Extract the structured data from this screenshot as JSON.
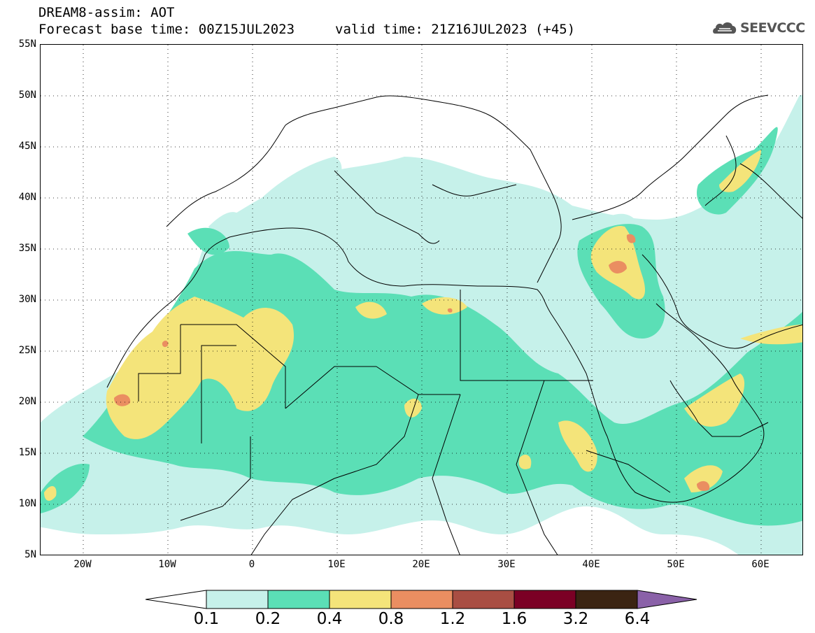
{
  "header": {
    "title": "DREAM8-assim: AOT",
    "base_time": "Forecast base time: 00Z15JUL2023",
    "valid_time": "valid time: 21Z16JUL2023 (+45)"
  },
  "logo": {
    "text": "SEEVCCC",
    "icon": "cloud-icon"
  },
  "map": {
    "lat_labels": [
      "55N",
      "50N",
      "45N",
      "40N",
      "35N",
      "30N",
      "25N",
      "20N",
      "15N",
      "10N",
      "5N"
    ],
    "lon_labels": [
      "20W",
      "10W",
      "0",
      "10E",
      "20E",
      "30E",
      "40E",
      "50E",
      "60E"
    ],
    "lat_range": [
      5,
      55
    ],
    "lon_range": [
      -25,
      65
    ],
    "grid": "dotted"
  },
  "legend": {
    "labels": [
      "0.1",
      "0.2",
      "0.4",
      "0.8",
      "1.2",
      "1.6",
      "3.2",
      "6.4"
    ],
    "colors": [
      "#c6f1ea",
      "#5bdfb6",
      "#f4e47a",
      "#ea8e61",
      "#a94e43",
      "#7b0025",
      "#3b2412",
      "#8a61a8"
    ]
  }
}
